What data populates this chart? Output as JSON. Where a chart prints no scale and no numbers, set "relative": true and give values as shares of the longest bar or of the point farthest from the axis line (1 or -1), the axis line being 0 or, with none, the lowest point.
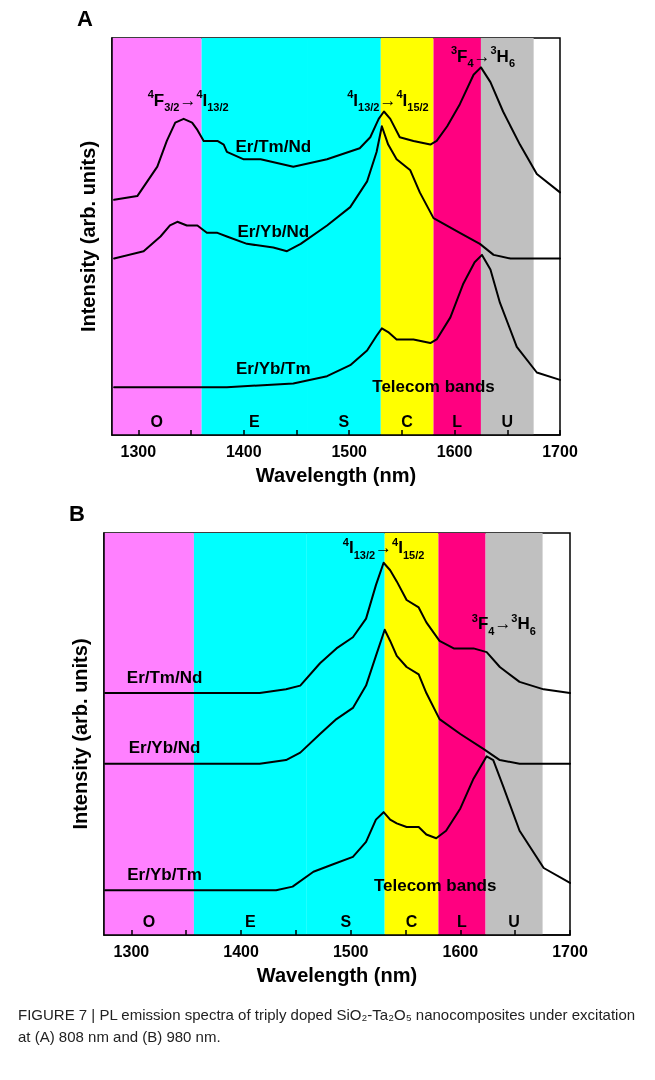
{
  "chart_data": [
    {
      "type": "line",
      "title": "A",
      "xlabel": "Wavelength (nm)",
      "ylabel": "Intensity (arb. units)",
      "relative": true,
      "xlim": [
        1275,
        1700
      ],
      "xticks": [
        1300,
        {
          "value": 1350,
          "label": null
        },
        1400,
        {
          "value": 1450,
          "label": null
        },
        1500,
        {
          "value": 1550,
          "label": null
        },
        1600,
        {
          "value": 1650,
          "label": null
        },
        1700
      ],
      "series": [
        {
          "name": "Er/Tm/Nd",
          "color": "#000000",
          "x": [
            1277,
            1299,
            1318,
            1327,
            1335,
            1343,
            1351,
            1356,
            1362,
            1375,
            1381,
            1384,
            1400,
            1416,
            1447,
            1479,
            1510,
            1520,
            1528,
            1533,
            1539,
            1548,
            1561,
            1577,
            1583,
            1593,
            1605,
            1618,
            1625,
            1634,
            1646,
            1662,
            1678,
            1700
          ],
          "values": [
            0.64,
            0.65,
            0.73,
            0.8,
            0.85,
            0.86,
            0.85,
            0.83,
            0.8,
            0.8,
            0.79,
            0.77,
            0.75,
            0.75,
            0.73,
            0.75,
            0.78,
            0.81,
            0.86,
            0.88,
            0.86,
            0.81,
            0.8,
            0.79,
            0.8,
            0.84,
            0.9,
            0.98,
            1,
            0.96,
            0.88,
            0.79,
            0.71,
            0.66
          ]
        },
        {
          "name": "Er/Yb/Nd",
          "color": "#000000",
          "x": [
            1277,
            1305,
            1321,
            1330,
            1337,
            1346,
            1356,
            1365,
            1375,
            1384,
            1403,
            1428,
            1441,
            1454,
            1479,
            1501,
            1517,
            1526,
            1531,
            1537,
            1545,
            1558,
            1567,
            1580,
            1605,
            1624,
            1637,
            1653,
            1700
          ],
          "values": [
            0.48,
            0.5,
            0.54,
            0.57,
            0.58,
            0.57,
            0.57,
            0.55,
            0.55,
            0.54,
            0.52,
            0.51,
            0.5,
            0.52,
            0.57,
            0.62,
            0.69,
            0.77,
            0.84,
            0.79,
            0.75,
            0.72,
            0.66,
            0.59,
            0.55,
            0.52,
            0.49,
            0.48,
            0.48
          ]
        },
        {
          "name": "Er/Yb/Tm",
          "color": "#000000",
          "x": [
            1277,
            1384,
            1447,
            1479,
            1501,
            1517,
            1526,
            1531,
            1537,
            1545,
            1561,
            1577,
            1583,
            1596,
            1608,
            1619,
            1626,
            1634,
            1643,
            1659,
            1678,
            1700
          ],
          "values": [
            0.13,
            0.13,
            0.14,
            0.16,
            0.19,
            0.23,
            0.27,
            0.29,
            0.28,
            0.26,
            0.26,
            0.25,
            0.26,
            0.32,
            0.41,
            0.47,
            0.49,
            0.45,
            0.36,
            0.24,
            0.17,
            0.15
          ]
        }
      ],
      "bands": [
        {
          "axis": "x",
          "from": 1275,
          "to": 1360,
          "label": "O",
          "color": "#ff80ff"
        },
        {
          "axis": "x",
          "from": 1360,
          "to": 1460,
          "label": "E",
          "color": "#00ffff"
        },
        {
          "axis": "x",
          "from": 1460,
          "to": 1530,
          "label": "S",
          "color": "#00ffff"
        },
        {
          "axis": "x",
          "from": 1530,
          "to": 1580,
          "label": "C",
          "color": "#ffff00"
        },
        {
          "axis": "x",
          "from": 1580,
          "to": 1625,
          "label": "L",
          "color": "#ff0080"
        },
        {
          "axis": "x",
          "from": 1625,
          "to": 1675,
          "label": "U",
          "color": "#c0c0c0"
        }
      ],
      "annotations": [
        "$^{4}$F$_{3/2}$→$^{4}$I$_{13/2}$",
        "$^{4}$I$_{13/2}$→$^{4}$I$_{15/2}$",
        "$^{3}$F$_{4}$→$^{3}$H$_{6}$",
        {
          "text": "Telecom bands",
          "x": 1580,
          "y": 0.14
        }
      ]
    },
    {
      "type": "line",
      "title": "B",
      "xlabel": "Wavelength (nm)",
      "ylabel": "Intensity (arb. units)",
      "relative": true,
      "xlim": [
        1275,
        1700
      ],
      "xticks": [
        1300,
        {
          "value": 1350,
          "label": null
        },
        1400,
        {
          "value": 1450,
          "label": null
        },
        1500,
        {
          "value": 1550,
          "label": null
        },
        1600,
        {
          "value": 1650,
          "label": null
        },
        1700
      ],
      "series": [
        {
          "name": "Er/Tm/Nd",
          "color": "#000000",
          "x": [
            1276,
            1356,
            1417,
            1441,
            1454,
            1472,
            1487,
            1502,
            1514,
            1523,
            1530,
            1536,
            1542,
            1551,
            1562,
            1569,
            1581,
            1594,
            1612,
            1624,
            1636,
            1654,
            1676,
            1700
          ],
          "values": [
            0.65,
            0.65,
            0.65,
            0.66,
            0.67,
            0.73,
            0.77,
            0.8,
            0.85,
            0.94,
            1,
            0.98,
            0.95,
            0.9,
            0.88,
            0.84,
            0.79,
            0.77,
            0.77,
            0.76,
            0.72,
            0.68,
            0.66,
            0.65
          ]
        },
        {
          "name": "Er/Yb/Nd",
          "color": "#000000",
          "x": [
            1276,
            1417,
            1441,
            1454,
            1472,
            1487,
            1502,
            1514,
            1523,
            1531,
            1536,
            1542,
            1551,
            1562,
            1569,
            1581,
            1600,
            1621,
            1636,
            1654,
            1700
          ],
          "values": [
            0.46,
            0.46,
            0.47,
            0.49,
            0.54,
            0.58,
            0.61,
            0.67,
            0.75,
            0.82,
            0.79,
            0.75,
            0.72,
            0.7,
            0.65,
            0.58,
            0.54,
            0.5,
            0.47,
            0.46,
            0.46
          ]
        },
        {
          "name": "Er/Yb/Tm",
          "color": "#000000",
          "x": [
            1276,
            1432,
            1447,
            1466,
            1484,
            1502,
            1514,
            1523,
            1530,
            1536,
            1542,
            1551,
            1562,
            1569,
            1578,
            1587,
            1600,
            1612,
            1624,
            1630,
            1639,
            1654,
            1676,
            1700
          ],
          "values": [
            0.12,
            0.12,
            0.13,
            0.17,
            0.19,
            0.21,
            0.25,
            0.31,
            0.33,
            0.31,
            0.3,
            0.29,
            0.29,
            0.27,
            0.26,
            0.28,
            0.34,
            0.42,
            0.48,
            0.47,
            0.4,
            0.28,
            0.18,
            0.14
          ]
        }
      ],
      "bands": [
        {
          "axis": "x",
          "from": 1275,
          "to": 1357,
          "label": "O",
          "color": "#ff80ff"
        },
        {
          "axis": "x",
          "from": 1357,
          "to": 1460,
          "label": "E",
          "color": "#00ffff"
        },
        {
          "axis": "x",
          "from": 1460,
          "to": 1531,
          "label": "S",
          "color": "#00ffff"
        },
        {
          "axis": "x",
          "from": 1531,
          "to": 1580,
          "label": "C",
          "color": "#ffff00"
        },
        {
          "axis": "x",
          "from": 1580,
          "to": 1623,
          "label": "L",
          "color": "#ff0080"
        },
        {
          "axis": "x",
          "from": 1623,
          "to": 1675,
          "label": "U",
          "color": "#c0c0c0"
        }
      ],
      "annotations": [
        "$^{4}$I$_{13/2}$→$^{4}$I$_{15/2}$",
        "$^{3}$F$_{4}$→$^{3}$H$_{6}$",
        {
          "text": "Telecom bands",
          "x": 1577,
          "y": 0.14
        },
        "FIGURE 7 | PL emission spectra of triply doped SiO₂-Ta₂O₅ nanocomposites under excitation at (A) 808 nm and (B) 980 nm."
      ]
    }
  ]
}
